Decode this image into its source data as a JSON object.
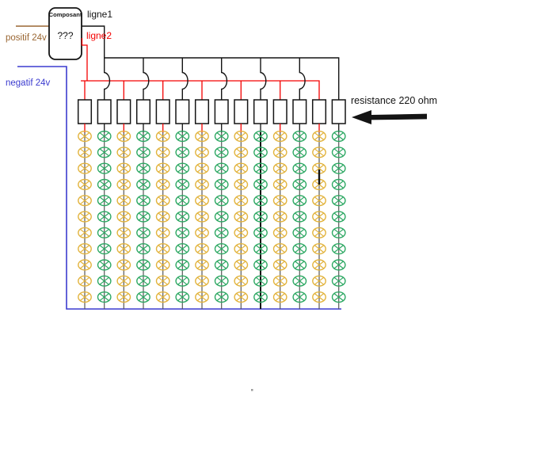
{
  "component": {
    "name_label": "Composant",
    "value_label": "???"
  },
  "wires": {
    "line1_label": "ligne1",
    "line2_label": "ligne2",
    "positive_label": "positif 24v",
    "negative_label": "negatif 24v"
  },
  "annotation": {
    "resistor_label": "resistance 220 ohm",
    "arrow_icon": "left-arrow-icon"
  },
  "grid": {
    "columns": 14,
    "rows": 11,
    "odd_column_feed": "ligne2-red",
    "even_column_feed": "ligne1-black",
    "odd_lamp_color_name": "yellow",
    "even_lamp_color_name": "green",
    "lamp_icon": "crossed-ellipse-lamp-icon",
    "resistor_icon": "resistor-box-icon"
  },
  "colors": {
    "black": "#141414",
    "red": "#f40000",
    "blue": "#3b3bcf",
    "brown": "#9a6733",
    "wire_gray": "#585858",
    "lamp_yellow": "#e2b33c",
    "lamp_green": "#2da863",
    "canvas": "#ffffff"
  }
}
